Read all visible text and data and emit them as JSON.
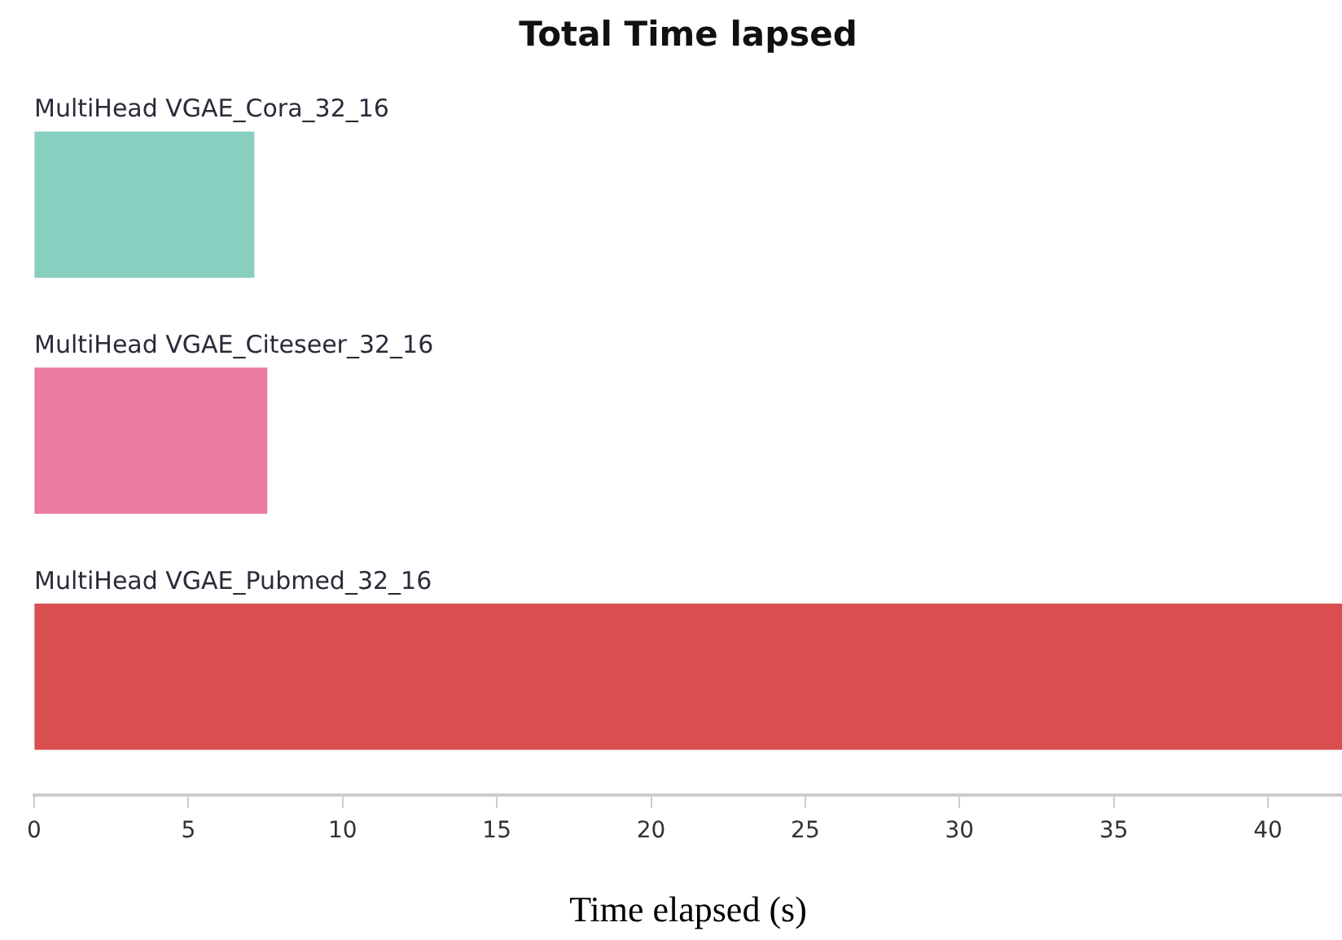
{
  "chart_data": {
    "type": "bar",
    "orientation": "horizontal",
    "title": "Total Time lapsed",
    "xlabel": "Time elapsed (s)",
    "categories": [
      "MultiHead VGAE_Cora_32_16",
      "MultiHead VGAE_Citeseer_32_16",
      "MultiHead VGAE_Pubmed_32_16"
    ],
    "values": [
      7.12,
      7.54,
      42.4
    ],
    "colors": [
      "#88cfc0",
      "#e97ca0",
      "#d94f4f"
    ],
    "xlim": [
      0,
      42.4
    ],
    "xticks": [
      0,
      5,
      10,
      15,
      20,
      25,
      30,
      35,
      40
    ],
    "grid": false,
    "legend": false
  }
}
